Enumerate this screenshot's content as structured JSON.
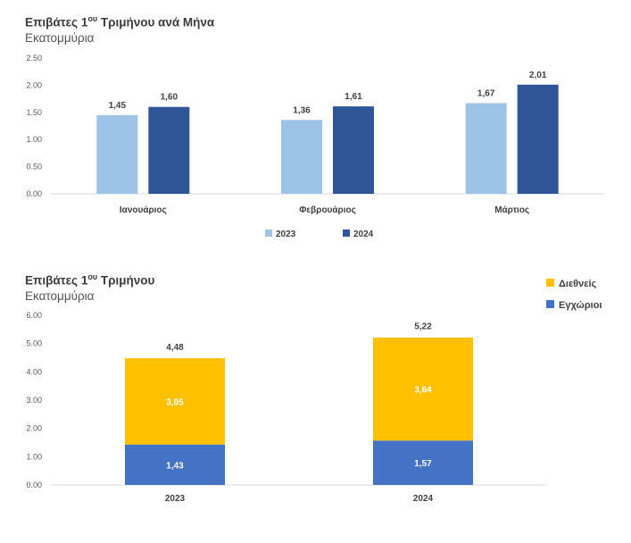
{
  "charts": [
    {
      "title_main": "Επιβάτες 1",
      "title_sup": "ου",
      "title_rest": " Τριμήνου ανά Μήνα",
      "subtitle": "Εκατομμύρια"
    },
    {
      "title_main": "Επιβάτες 1",
      "title_sup": "ου",
      "title_rest": " Τριμήνου",
      "subtitle": "Εκατομμύρια"
    }
  ],
  "colors": {
    "y2023": "#9dc3e6",
    "y2024": "#2f5597",
    "domestic": "#4472c4",
    "international": "#ffc000"
  },
  "chart_data": [
    {
      "type": "bar",
      "title": "Επιβάτες 1ου Τριμήνου ανά Μήνα",
      "ylabel": "Εκατομμύρια",
      "categories": [
        "Ιανουάριος",
        "Φεβρουάριος",
        "Μάρτιος"
      ],
      "series": [
        {
          "name": "2023",
          "values": [
            1.45,
            1.36,
            1.67
          ],
          "labels": [
            "1,45",
            "1,36",
            "1,67"
          ]
        },
        {
          "name": "2024",
          "values": [
            1.6,
            1.61,
            2.01
          ],
          "labels": [
            "1,60",
            "1,61",
            "2,01"
          ]
        }
      ],
      "ylim": [
        0,
        2.5
      ],
      "yticks": [
        "0.00",
        "0.50",
        "1.00",
        "1.50",
        "2.00",
        "2.50"
      ],
      "grid": false,
      "legend": "bottom"
    },
    {
      "type": "bar",
      "stacked": true,
      "title": "Επιβάτες 1ου Τριμήνου",
      "ylabel": "Εκατομμύρια",
      "categories": [
        "2023",
        "2024"
      ],
      "series": [
        {
          "name": "Εγχώριοι",
          "values": [
            1.43,
            1.57
          ],
          "labels": [
            "1,43",
            "1,57"
          ]
        },
        {
          "name": "Διεθνείς",
          "values": [
            3.05,
            3.64
          ],
          "labels": [
            "3,05",
            "3,64"
          ]
        }
      ],
      "totals": [
        4.48,
        5.22
      ],
      "total_labels": [
        "4,48",
        "5,22"
      ],
      "ylim": [
        0,
        6
      ],
      "yticks": [
        "0.00",
        "1.00",
        "2.00",
        "3.00",
        "4.00",
        "5.00",
        "6.00"
      ],
      "grid": false,
      "legend": "top-right"
    }
  ]
}
